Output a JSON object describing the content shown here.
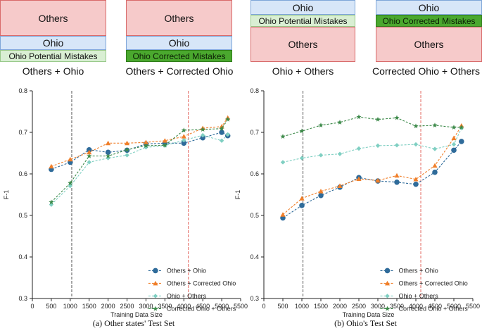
{
  "diagram": {
    "panels": [
      {
        "caption": "Others + Ohio",
        "blocks": [
          {
            "label": "Others",
            "kind": "others"
          },
          {
            "label": "Ohio",
            "kind": "ohio"
          },
          {
            "label": "Ohio Potential Mistakes",
            "kind": "potential"
          }
        ]
      },
      {
        "caption": "Others + Corrected Ohio",
        "blocks": [
          {
            "label": "Others",
            "kind": "others"
          },
          {
            "label": "Ohio",
            "kind": "ohio"
          },
          {
            "label": "Ohio Corrected Mistakes",
            "kind": "corrected"
          }
        ]
      },
      {
        "caption": "Ohio + Others",
        "blocks": [
          {
            "label": "Ohio",
            "kind": "ohio"
          },
          {
            "label": "Ohio Potential Mistakes",
            "kind": "potential"
          },
          {
            "label": "Others",
            "kind": "others"
          }
        ]
      },
      {
        "caption": "Corrected Ohio + Others",
        "blocks": [
          {
            "label": "Ohio",
            "kind": "ohio"
          },
          {
            "label": "Ohio Corrected Mistakes",
            "kind": "corrected"
          },
          {
            "label": "Others",
            "kind": "others"
          }
        ]
      }
    ]
  },
  "colors": {
    "others_ohio": "#2f6b9a",
    "others_corrected_ohio": "#f07f2a",
    "ohio_others": "#7fcfc2",
    "corrected_ohio_others": "#3d8a4a",
    "vline_black": "#444444",
    "vline_red": "#e0574f"
  },
  "chart_data": [
    {
      "type": "line",
      "caption": "(a) Other states' Test Set",
      "xlabel": "Training Data Size",
      "ylabel": "F-1",
      "xlim": [
        0,
        5500
      ],
      "ylim": [
        0.3,
        0.8
      ],
      "xticks": [
        0,
        500,
        1000,
        1500,
        2000,
        2500,
        3000,
        3500,
        4000,
        4500,
        5000,
        5500
      ],
      "yticks": [
        0.3,
        0.4,
        0.5,
        0.6,
        0.7,
        0.8
      ],
      "vlines": [
        {
          "x": 1040,
          "style": "black-dash"
        },
        {
          "x": 4120,
          "style": "red-dash"
        }
      ],
      "legend_position": "bottom-right",
      "x": [
        500,
        1000,
        1500,
        2000,
        2500,
        3000,
        3500,
        4000,
        4500,
        5000,
        5160
      ],
      "series": [
        {
          "name": "Others + Ohio",
          "marker": "circle",
          "values": [
            0.611,
            0.628,
            0.658,
            0.652,
            0.657,
            0.672,
            0.674,
            0.674,
            0.687,
            0.7,
            0.692
          ]
        },
        {
          "name": "Others + Corrected Ohio",
          "marker": "triangle",
          "values": [
            0.618,
            0.635,
            0.652,
            0.674,
            0.674,
            0.676,
            0.68,
            0.69,
            0.71,
            0.714,
            0.735
          ]
        },
        {
          "name": "Ohio + Others",
          "marker": "diamond",
          "values": [
            0.526,
            0.571,
            0.628,
            0.638,
            0.645,
            0.664,
            0.668,
            0.681,
            0.693,
            0.68,
            0.695
          ]
        },
        {
          "name": "Corrected Ohio + Others",
          "marker": "star",
          "values": [
            0.532,
            0.578,
            0.643,
            0.643,
            0.658,
            0.668,
            0.669,
            0.705,
            0.707,
            0.709,
            0.731
          ]
        }
      ]
    },
    {
      "type": "line",
      "caption": "(b) Ohio's Test Set",
      "xlabel": "Training Data Size",
      "ylabel": "F-1",
      "xlim": [
        0,
        5500
      ],
      "ylim": [
        0.3,
        0.8
      ],
      "xticks": [
        0,
        500,
        1000,
        1500,
        2000,
        2500,
        3000,
        3500,
        4000,
        4500,
        5000,
        5500
      ],
      "yticks": [
        0.3,
        0.4,
        0.5,
        0.6,
        0.7,
        0.8
      ],
      "vlines": [
        {
          "x": 1030,
          "style": "black-dash"
        },
        {
          "x": 4130,
          "style": "red-dash"
        }
      ],
      "legend_position": "bottom-right",
      "x": [
        500,
        1000,
        1500,
        2000,
        2500,
        3000,
        3500,
        4000,
        4500,
        5000,
        5200
      ],
      "series": [
        {
          "name": "Others + Ohio",
          "marker": "circle",
          "values": [
            0.494,
            0.524,
            0.548,
            0.568,
            0.591,
            0.583,
            0.58,
            0.575,
            0.604,
            0.657,
            0.678
          ]
        },
        {
          "name": "Others + Corrected Ohio",
          "marker": "triangle",
          "values": [
            0.502,
            0.541,
            0.558,
            0.571,
            0.588,
            0.584,
            0.596,
            0.587,
            0.62,
            0.686,
            0.716
          ]
        },
        {
          "name": "Ohio + Others",
          "marker": "diamond",
          "values": [
            0.628,
            0.638,
            0.645,
            0.648,
            0.661,
            0.668,
            0.669,
            0.671,
            0.66,
            0.671,
            0.71
          ]
        },
        {
          "name": "Corrected Ohio + Others",
          "marker": "star",
          "values": [
            0.69,
            0.703,
            0.717,
            0.724,
            0.737,
            0.731,
            0.735,
            0.715,
            0.717,
            0.712,
            0.712
          ]
        }
      ]
    }
  ]
}
